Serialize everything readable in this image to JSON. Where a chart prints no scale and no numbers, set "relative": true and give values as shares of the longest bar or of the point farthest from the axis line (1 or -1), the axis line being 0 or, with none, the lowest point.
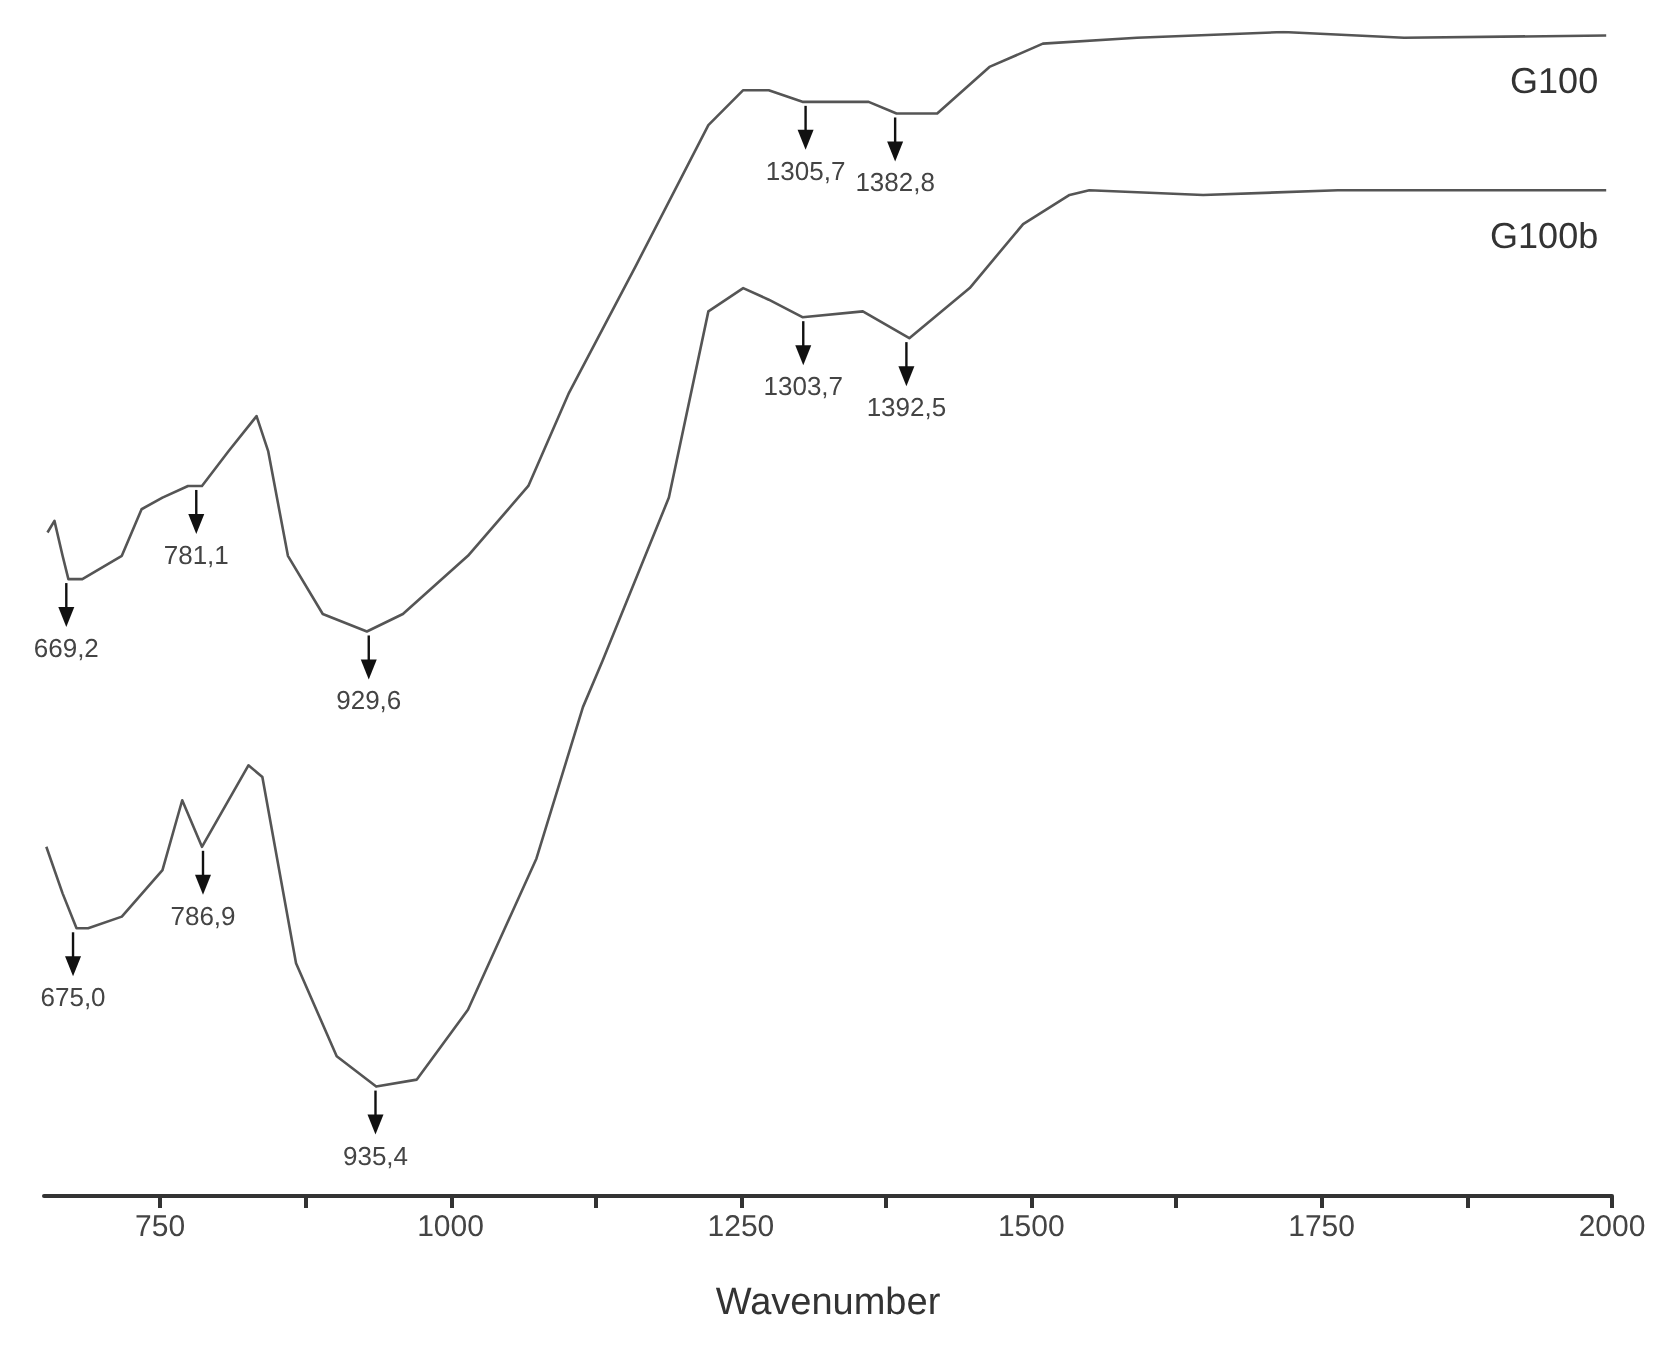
{
  "chart_data": {
    "type": "line",
    "relative": true,
    "xlabel": "Wavenumber",
    "xlim": [
      650,
      2000
    ],
    "xticks": [
      750,
      {
        "value": 875,
        "label": null
      },
      1000,
      {
        "value": 1125,
        "label": null
      },
      1250,
      {
        "value": 1375,
        "label": null
      },
      1500,
      {
        "value": 1625,
        "label": null
      },
      1750,
      {
        "value": 1875,
        "label": null
      },
      2000
    ],
    "series": [
      {
        "name": "G100",
        "color": "#555555",
        "x": [
          653,
          659,
          666,
          671,
          683,
          717,
          734,
          752,
          774,
          781,
          786,
          809,
          833,
          843,
          860,
          890,
          928,
          959,
          1015,
          1067,
          1102,
          1160,
          1222,
          1252,
          1274,
          1303,
          1360,
          1384,
          1419,
          1464,
          1510,
          1591,
          1717,
          1821,
          1995
        ],
        "values": [
          0.57,
          0.58,
          0.55,
          0.53,
          0.53,
          0.55,
          0.59,
          0.6,
          0.61,
          0.61,
          0.61,
          0.64,
          0.67,
          0.64,
          0.55,
          0.5,
          0.485,
          0.5,
          0.55,
          0.61,
          0.69,
          0.8,
          0.92,
          0.95,
          0.95,
          0.94,
          0.94,
          0.93,
          0.93,
          0.97,
          0.99,
          0.995,
          1.0,
          0.995,
          0.997
        ]
      },
      {
        "name": "G100b",
        "color": "#555555",
        "x": [
          652,
          666,
          678,
          688,
          717,
          752,
          769,
          786,
          826,
          838,
          867,
          902,
          936,
          971,
          1015,
          1074,
          1114,
          1131,
          1188,
          1222,
          1252,
          1274,
          1303,
          1355,
          1395,
          1447,
          1493,
          1533,
          1550,
          1648,
          1764,
          1995
        ],
        "values": [
          0.3,
          0.26,
          0.23,
          0.23,
          0.24,
          0.28,
          0.34,
          0.3,
          0.37,
          0.36,
          0.2,
          0.12,
          0.094,
          0.1,
          0.16,
          0.29,
          0.42,
          0.46,
          0.6,
          0.76,
          0.78,
          0.77,
          0.755,
          0.76,
          0.737,
          0.78,
          0.835,
          0.86,
          0.864,
          0.86,
          0.864,
          0.864
        ]
      }
    ],
    "annotations": [
      {
        "text": "669,2",
        "x": 669.2,
        "y": 0.53
      },
      {
        "text": "781,1",
        "x": 781.1,
        "y": 0.61
      },
      {
        "text": "929,6",
        "x": 929.6,
        "y": 0.485
      },
      {
        "text": "1305,7",
        "x": 1305.7,
        "y": 0.94
      },
      {
        "text": "1382,8",
        "x": 1382.8,
        "y": 0.93
      },
      {
        "text": "675,0",
        "x": 675.0,
        "y": 0.23
      },
      {
        "text": "786,9",
        "x": 786.9,
        "y": 0.3
      },
      {
        "text": "935,4",
        "x": 935.4,
        "y": 0.094
      },
      {
        "text": "1303,7",
        "x": 1303.7,
        "y": 0.755
      },
      {
        "text": "1392,5",
        "x": 1392.5,
        "y": 0.737
      }
    ]
  }
}
